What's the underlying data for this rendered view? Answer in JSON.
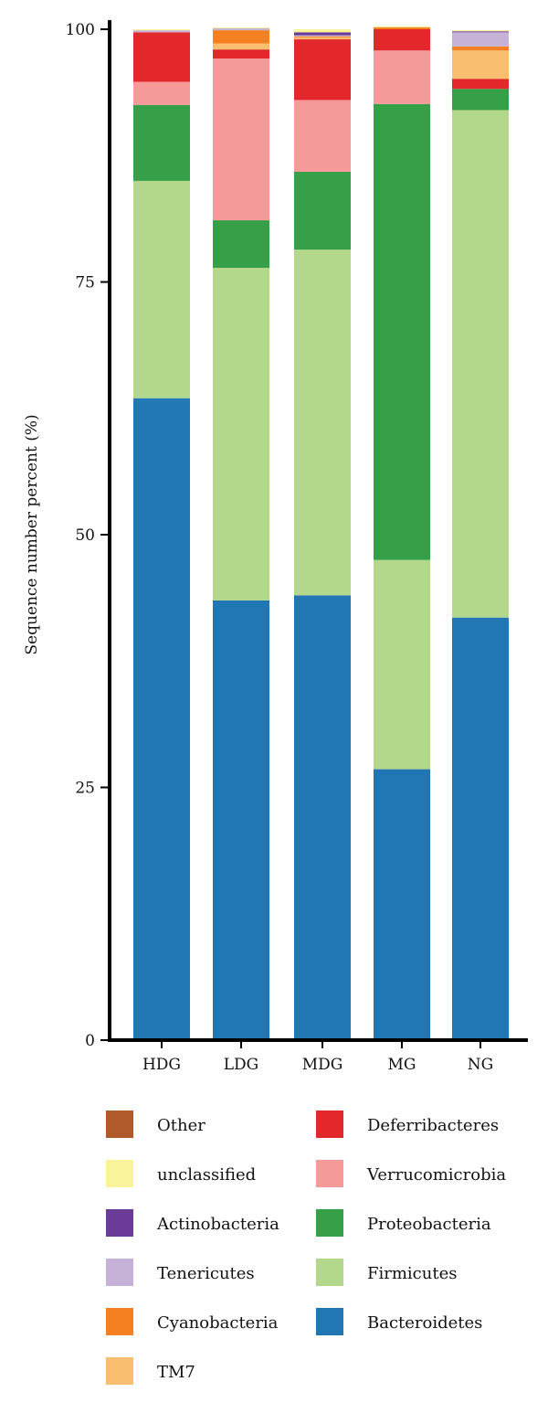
{
  "chart_data": {
    "type": "bar",
    "stacked": true,
    "title": "",
    "xlabel": "",
    "ylabel": "Sequence number percent (%)",
    "ylim": [
      0,
      100
    ],
    "yticks": [
      "0",
      "25",
      "50",
      "75",
      "100"
    ],
    "grid": false,
    "legend_position": "bottom",
    "categories": [
      "HDG",
      "LDG",
      "MDG",
      "MG",
      "NG"
    ],
    "series": [
      {
        "name": "Bacteroidetes",
        "color": "#2176b4",
        "values": [
          63.5,
          43.5,
          44.0,
          26.8,
          41.8
        ]
      },
      {
        "name": "Firmicutes",
        "color": "#b3d88c",
        "values": [
          21.5,
          32.9,
          34.2,
          20.7,
          50.2
        ]
      },
      {
        "name": "Proteobacteria",
        "color": "#35a047",
        "values": [
          7.5,
          4.7,
          7.7,
          45.1,
          2.1
        ]
      },
      {
        "name": "Verrucomicrobia",
        "color": "#f59a98",
        "values": [
          2.3,
          16.0,
          7.1,
          5.3,
          0.0
        ]
      },
      {
        "name": "Deferribacteres",
        "color": "#e2282a",
        "values": [
          4.9,
          0.9,
          6.0,
          2.1,
          1.0
        ]
      },
      {
        "name": "TM7",
        "color": "#fabe70",
        "values": [
          0.0,
          0.6,
          0.2,
          0.0,
          2.8
        ]
      },
      {
        "name": "Cyanobacteria",
        "color": "#f58021",
        "values": [
          0.0,
          1.3,
          0.1,
          0.2,
          0.4
        ]
      },
      {
        "name": "Tenericutes",
        "color": "#c6b2d6",
        "values": [
          0.2,
          0.2,
          0.1,
          0.0,
          1.4
        ]
      },
      {
        "name": "Actinobacteria",
        "color": "#6a3c98",
        "values": [
          0.0,
          0.0,
          0.3,
          0.0,
          0.1
        ]
      },
      {
        "name": "unclassified",
        "color": "#f9f49b",
        "values": [
          0.1,
          0.1,
          0.3,
          0.1,
          0.1
        ]
      },
      {
        "name": "Other",
        "color": "#b05a2c",
        "values": [
          0.0,
          0.0,
          0.0,
          0.0,
          0.0
        ]
      }
    ],
    "legend": {
      "left": [
        "Other",
        "unclassified",
        "Actinobacteria",
        "Tenericutes",
        "Cyanobacteria",
        "TM7"
      ],
      "right": [
        "Deferribacteres",
        "Verrucomicrobia",
        "Proteobacteria",
        "Firmicutes",
        "Bacteroidetes"
      ]
    }
  }
}
